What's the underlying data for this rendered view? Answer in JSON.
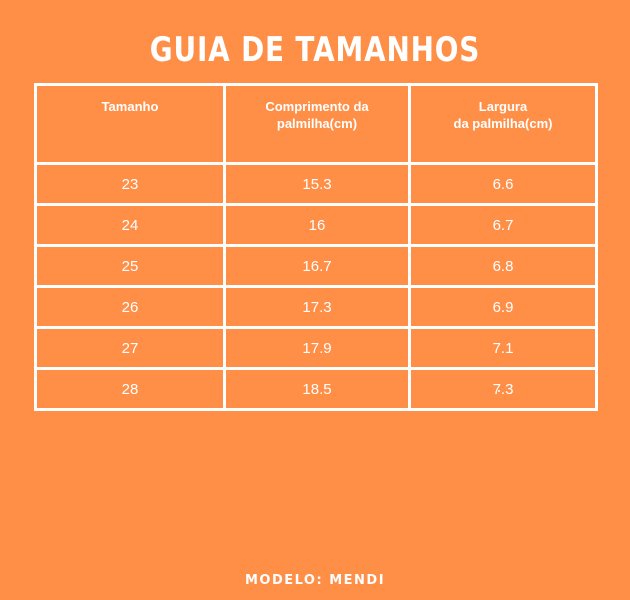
{
  "title": "GUIA DE TAMANHOS",
  "table": {
    "headers": [
      "Tamanho",
      "Comprimento da\npalmilha(cm)",
      "Largura\nda palmilha(cm)"
    ],
    "rows": [
      [
        "23",
        "15.3",
        "6.6"
      ],
      [
        "24",
        "16",
        "6.7"
      ],
      [
        "25",
        "16.7",
        "6.8"
      ],
      [
        "26",
        "17.3",
        "6.9"
      ],
      [
        "27",
        "17.9",
        "7.1"
      ],
      [
        "28",
        "18.5",
        "7.3"
      ]
    ]
  },
  "footer": {
    "model": "MODELO: MENDI"
  },
  "colors": {
    "background": "#FF8E47",
    "text": "#FFFFFF",
    "grid": "#FFFFFF"
  }
}
